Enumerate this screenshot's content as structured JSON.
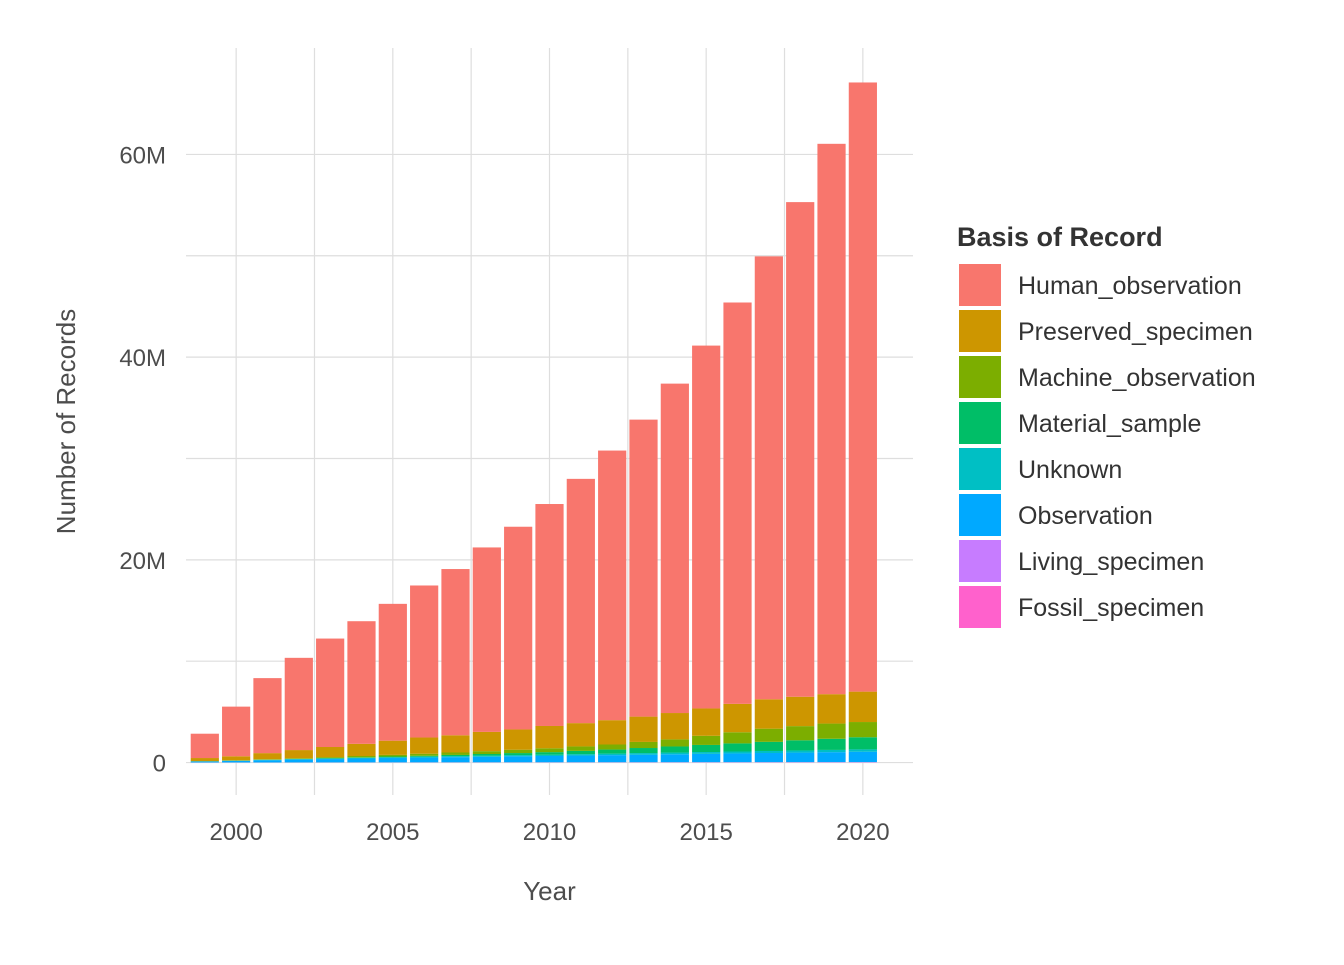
{
  "chart_data": {
    "type": "bar",
    "stacked": true,
    "xlabel": "Year",
    "ylabel": "Number of Records",
    "x_ticks": [
      "2000",
      "2005",
      "2010",
      "2015",
      "2020"
    ],
    "y_ticks": [
      "0",
      "20M",
      "40M",
      "60M"
    ],
    "y_tick_values": [
      0,
      20000000,
      40000000,
      60000000
    ],
    "xlim": [
      1998.4,
      2021.6
    ],
    "ylim": [
      -3200000,
      70500000
    ],
    "grid": true,
    "legend": {
      "title": "Basis of Record",
      "position": "right"
    },
    "categories": [
      1999,
      2000,
      2001,
      2002,
      2003,
      2004,
      2005,
      2006,
      2007,
      2008,
      2009,
      2010,
      2011,
      2012,
      2013,
      2014,
      2015,
      2016,
      2017,
      2018,
      2019,
      2020
    ],
    "series": [
      {
        "name": "Human_observation",
        "color": "#F8766D",
        "values": [
          2400000,
          4900000,
          7400000,
          9100000,
          10700000,
          12100000,
          13500000,
          15000000,
          16400000,
          18200000,
          20000000,
          21900000,
          24100000,
          26600000,
          29300000,
          32500000,
          35800000,
          39600000,
          43700000,
          48800000,
          54300000,
          60100000
        ]
      },
      {
        "name": "Preserved_specimen",
        "color": "#CD9600",
        "values": [
          300000,
          400000,
          600000,
          800000,
          1000000,
          1200000,
          1400000,
          1600000,
          1700000,
          1900000,
          2000000,
          2200000,
          2300000,
          2400000,
          2500000,
          2600000,
          2700000,
          2800000,
          2900000,
          2900000,
          2900000,
          3000000
        ]
      },
      {
        "name": "Machine_observation",
        "color": "#7CAE00",
        "values": [
          20000,
          30000,
          50000,
          70000,
          100000,
          130000,
          160000,
          200000,
          240000,
          280000,
          330000,
          380000,
          440000,
          500000,
          600000,
          700000,
          900000,
          1100000,
          1300000,
          1400000,
          1500000,
          1500000
        ]
      },
      {
        "name": "Material_sample",
        "color": "#00BE67",
        "values": [
          0,
          0,
          10000,
          20000,
          30000,
          50000,
          70000,
          90000,
          120000,
          160000,
          200000,
          250000,
          320000,
          400000,
          500000,
          600000,
          700000,
          800000,
          900000,
          1000000,
          1100000,
          1200000
        ]
      },
      {
        "name": "Unknown",
        "color": "#00BFC4",
        "values": [
          20000,
          30000,
          40000,
          50000,
          60000,
          70000,
          80000,
          90000,
          100000,
          110000,
          120000,
          130000,
          140000,
          150000,
          160000,
          170000,
          180000,
          190000,
          200000,
          210000,
          220000,
          230000
        ]
      },
      {
        "name": "Observation",
        "color": "#00A9FF",
        "values": [
          100000,
          150000,
          220000,
          280000,
          330000,
          380000,
          430000,
          470000,
          510000,
          550000,
          590000,
          620000,
          660000,
          700000,
          740000,
          780000,
          820000,
          860000,
          900000,
          940000,
          980000,
          1020000
        ]
      },
      {
        "name": "Living_specimen",
        "color": "#C77CFF",
        "values": [
          5000,
          6000,
          7000,
          8000,
          9000,
          10000,
          11000,
          12000,
          13000,
          14000,
          15000,
          16000,
          17000,
          18000,
          19000,
          20000,
          21000,
          22000,
          23000,
          24000,
          25000,
          26000
        ]
      },
      {
        "name": "Fossil_specimen",
        "color": "#FF61CC",
        "values": [
          2000,
          3000,
          4000,
          5000,
          6000,
          7000,
          8000,
          9000,
          10000,
          11000,
          12000,
          13000,
          14000,
          15000,
          16000,
          17000,
          18000,
          19000,
          20000,
          21000,
          22000,
          23000
        ]
      }
    ]
  }
}
